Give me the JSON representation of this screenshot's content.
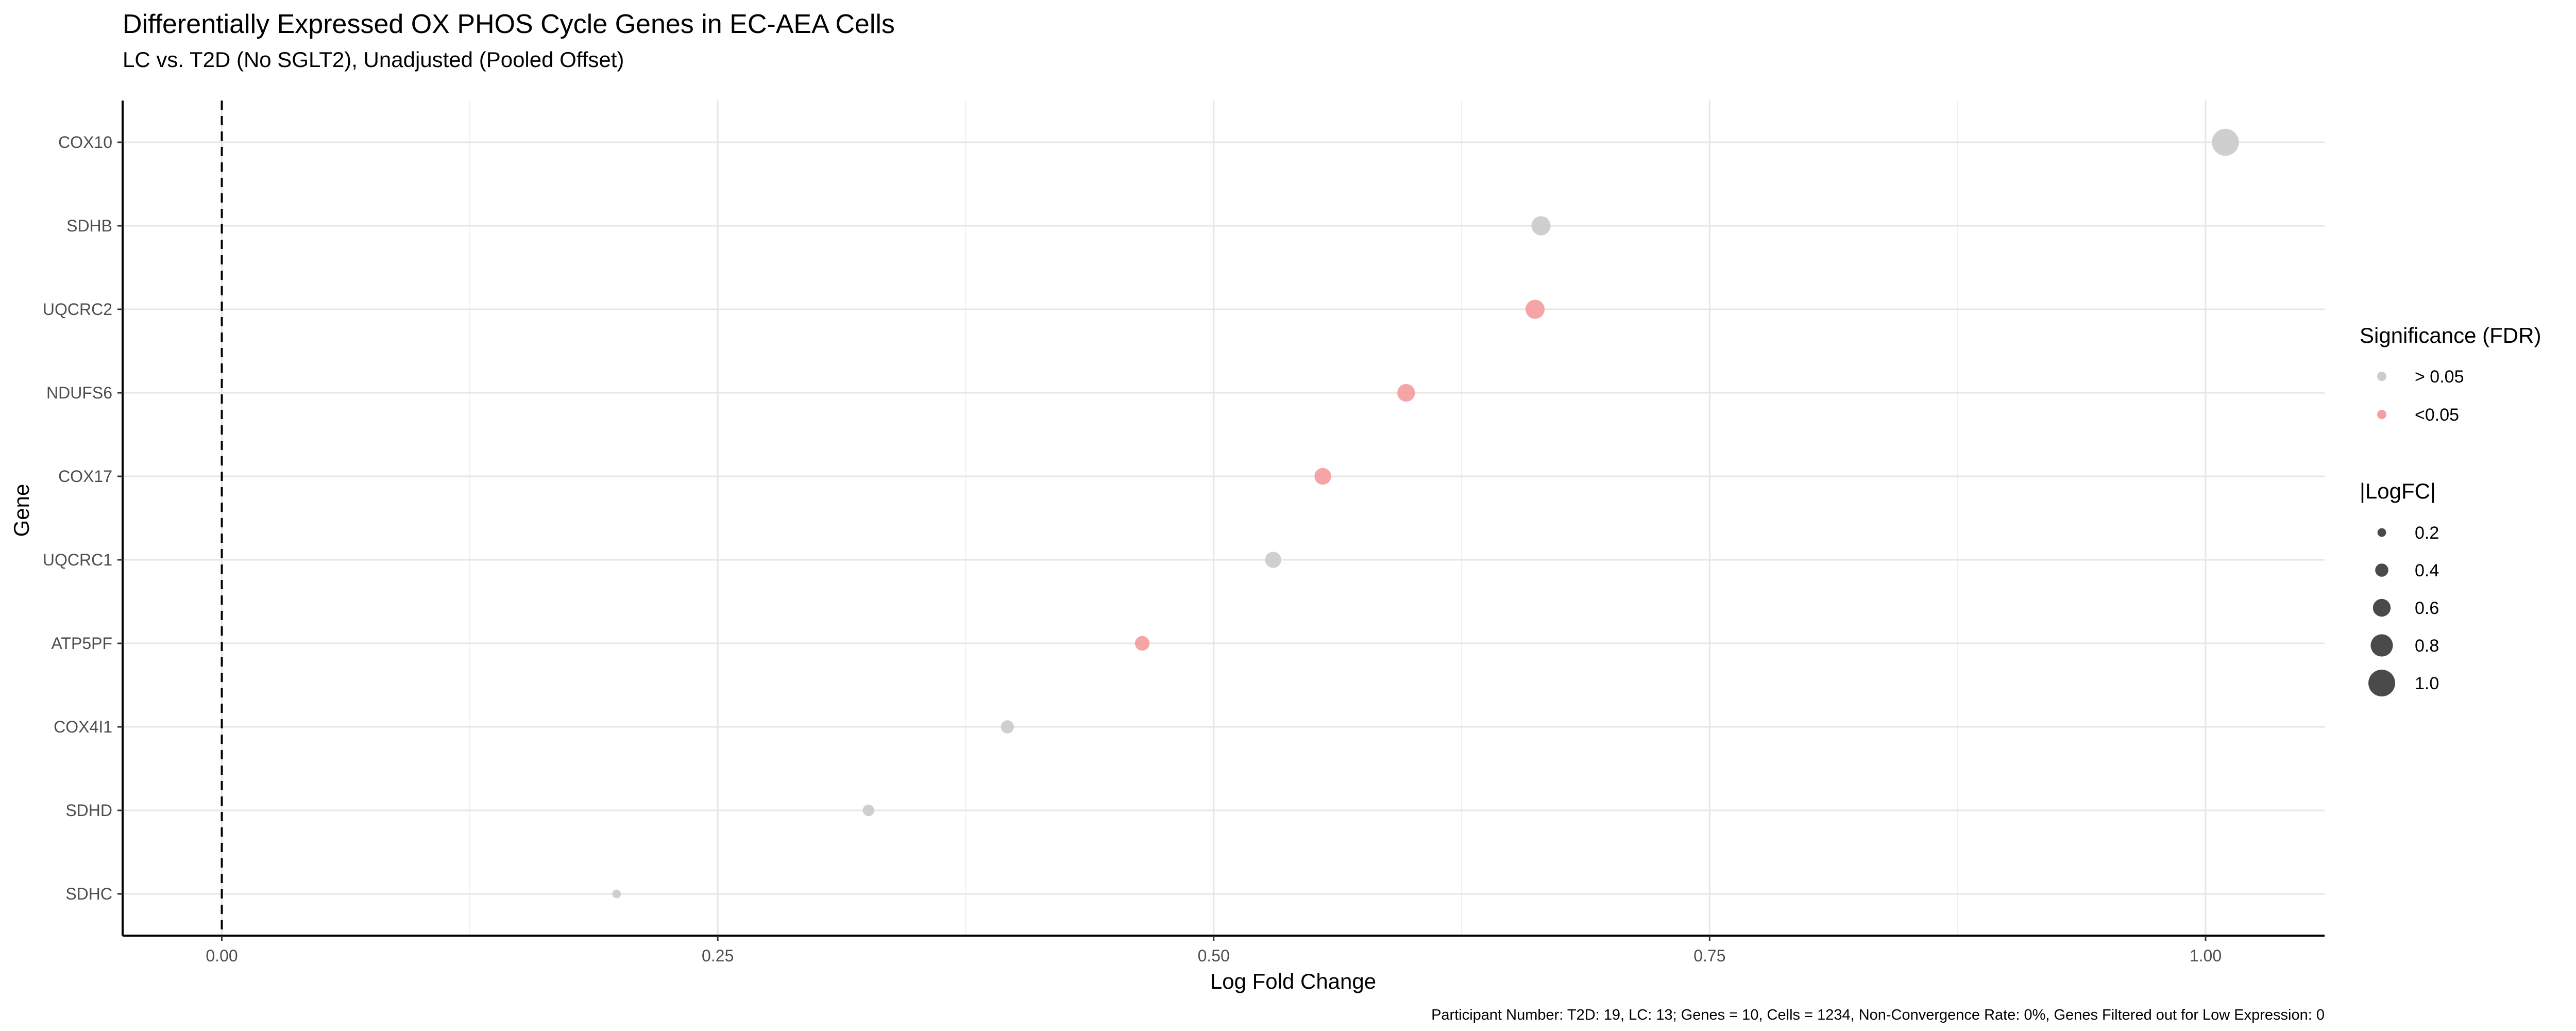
{
  "chart_data": {
    "type": "scatter",
    "title": "Differentially Expressed OX PHOS Cycle Genes in EC-AEA Cells",
    "subtitle": "LC vs. T2D (No SGLT2), Unadjusted (Pooled Offset)",
    "xlabel": "Log Fold Change",
    "ylabel": "Gene",
    "xlim": [
      -0.05,
      1.06
    ],
    "x_ticks": [
      "0.00",
      "0.25",
      "0.50",
      "0.75",
      "1.00"
    ],
    "x_tick_values": [
      0.0,
      0.25,
      0.5,
      0.75,
      1.0
    ],
    "grid": true,
    "reference_line": {
      "x": 0,
      "style": "dashed"
    },
    "categories": [
      "COX10",
      "SDHB",
      "UQCRC2",
      "NDUFS6",
      "COX17",
      "UQCRC1",
      "ATP5PF",
      "COX4I1",
      "SDHD",
      "SDHC"
    ],
    "points": [
      {
        "gene": "COX10",
        "logFC": 1.01,
        "significance": "> 0.05"
      },
      {
        "gene": "SDHB",
        "logFC": 0.665,
        "significance": "> 0.05"
      },
      {
        "gene": "UQCRC2",
        "logFC": 0.662,
        "significance": "<0.05"
      },
      {
        "gene": "NDUFS6",
        "logFC": 0.597,
        "significance": "<0.05"
      },
      {
        "gene": "COX17",
        "logFC": 0.555,
        "significance": "<0.05"
      },
      {
        "gene": "UQCRC1",
        "logFC": 0.53,
        "significance": "> 0.05"
      },
      {
        "gene": "ATP5PF",
        "logFC": 0.464,
        "significance": "<0.05"
      },
      {
        "gene": "COX4I1",
        "logFC": 0.396,
        "significance": "> 0.05"
      },
      {
        "gene": "SDHD",
        "logFC": 0.326,
        "significance": "> 0.05"
      },
      {
        "gene": "SDHC",
        "logFC": 0.199,
        "significance": "> 0.05"
      }
    ],
    "legend_color": {
      "title": "Significance (FDR)",
      "items": [
        {
          "label": "> 0.05",
          "color": "#cccccc"
        },
        {
          "label": "<0.05",
          "color": "#f4a0a0"
        }
      ]
    },
    "legend_size": {
      "title": "|LogFC|",
      "items": [
        {
          "label": "0.2",
          "value": 0.2
        },
        {
          "label": "0.4",
          "value": 0.4
        },
        {
          "label": "0.6",
          "value": 0.6
        },
        {
          "label": "0.8",
          "value": 0.8
        },
        {
          "label": "1.0",
          "value": 1.0
        }
      ],
      "color": "#4a4a4a"
    },
    "legend_placement": "right",
    "caption": "Participant Number: T2D: 19, LC: 13; Genes = 10, Cells = 1234, Non-Convergence Rate: 0%, Genes Filtered out for Low Expression: 0"
  }
}
